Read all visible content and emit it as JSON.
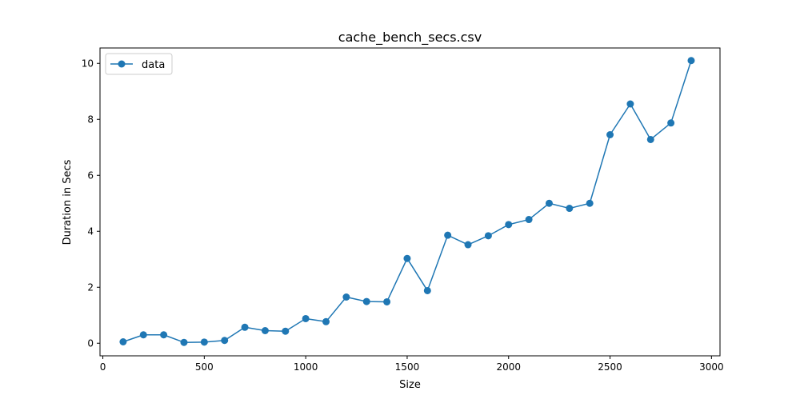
{
  "chart_data": {
    "type": "line",
    "title": "cache_bench_secs.csv",
    "xlabel": "Size",
    "ylabel": "Duration in Secs",
    "xlim": [
      -14,
      3042
    ],
    "ylim": [
      -0.45,
      10.55
    ],
    "xticks": [
      0,
      500,
      1000,
      1500,
      2000,
      2500,
      3000
    ],
    "yticks": [
      0,
      2,
      4,
      6,
      8,
      10
    ],
    "grid": false,
    "legend_position": "upper-left",
    "series": [
      {
        "name": "data",
        "color": "#1f77b4",
        "marker": "circle",
        "x": [
          100,
          200,
          300,
          400,
          500,
          600,
          700,
          800,
          900,
          1000,
          1100,
          1200,
          1300,
          1400,
          1500,
          1600,
          1700,
          1800,
          1900,
          2000,
          2100,
          2200,
          2300,
          2400,
          2500,
          2600,
          2700,
          2800,
          2900
        ],
        "y": [
          0.05,
          0.3,
          0.3,
          0.03,
          0.04,
          0.1,
          0.57,
          0.45,
          0.43,
          0.88,
          0.77,
          1.65,
          1.49,
          1.48,
          3.03,
          1.88,
          3.86,
          3.52,
          3.84,
          4.24,
          4.42,
          5.0,
          4.82,
          5.0,
          7.45,
          8.55,
          7.28,
          7.87,
          10.1
        ]
      }
    ]
  }
}
